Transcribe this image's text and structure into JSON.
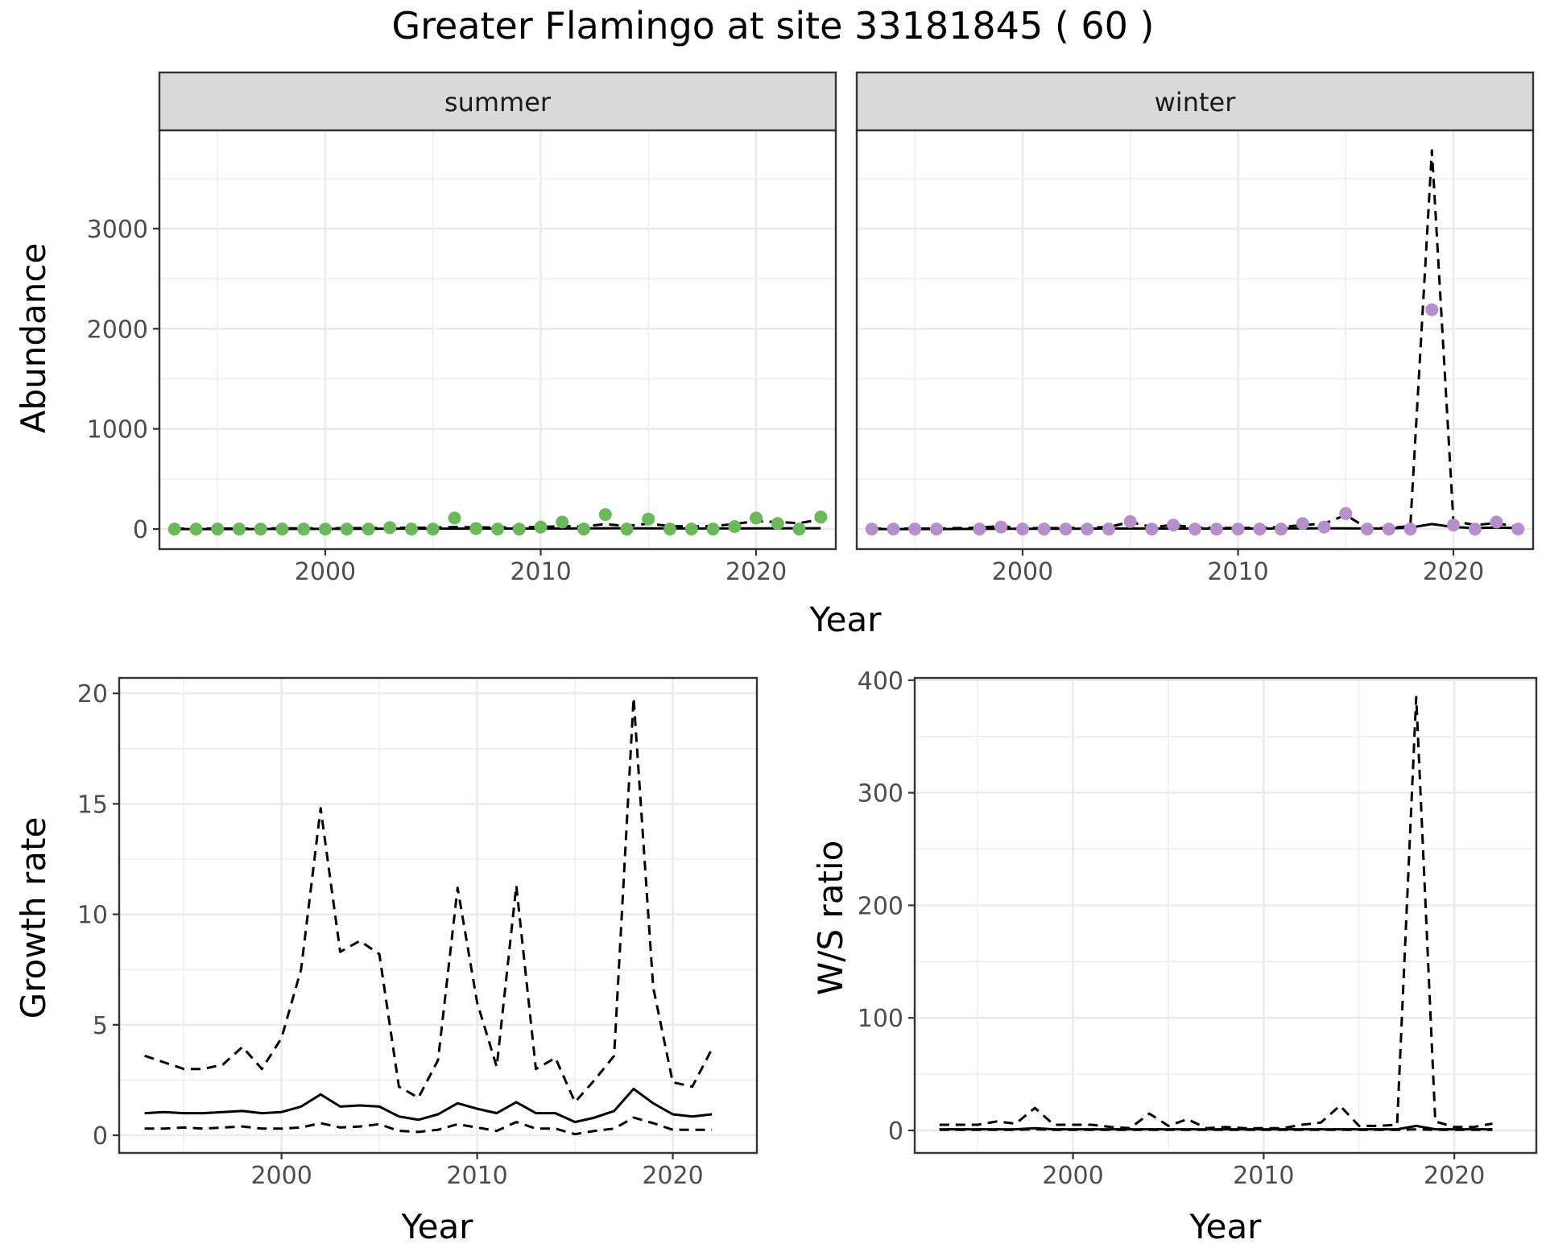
{
  "title": "Greater Flamingo at site 33181845 ( 60 )",
  "colors": {
    "summer": "#6ab85a",
    "winter": "#b48fc9"
  },
  "chart_data": [
    {
      "id": "abundance",
      "type": "scatter",
      "facets": [
        "summer",
        "winter"
      ],
      "xlabel": "Year",
      "ylabel": "Abundance",
      "xlim": [
        1992.3,
        2023.7
      ],
      "ylim": [
        -200,
        3980
      ],
      "x_ticks": [
        2000,
        2010,
        2020
      ],
      "y_ticks": [
        0,
        1000,
        2000,
        3000
      ],
      "panels": [
        {
          "facet": "summer",
          "points": {
            "x": [
              1993,
              1994,
              1995,
              1996,
              1997,
              1998,
              1999,
              2000,
              2001,
              2002,
              2003,
              2004,
              2005,
              2006,
              2007,
              2008,
              2009,
              2010,
              2011,
              2012,
              2013,
              2014,
              2015,
              2016,
              2017,
              2018,
              2019,
              2020,
              2021,
              2022,
              2023
            ],
            "y": [
              0,
              0,
              0,
              0,
              0,
              0,
              0,
              0,
              0,
              0,
              15,
              0,
              0,
              110,
              5,
              0,
              0,
              20,
              70,
              0,
              145,
              0,
              100,
              0,
              0,
              0,
              25,
              110,
              55,
              0,
              120
            ]
          },
          "estimate": {
            "x": [
              1993,
              1996,
              1999,
              2002,
              2005,
              2008,
              2011,
              2014,
              2017,
              2020,
              2023
            ],
            "y": [
              0,
              0,
              2,
              3,
              4,
              5,
              6,
              8,
              6,
              7,
              8
            ]
          },
          "upper": {
            "x": [
              1993,
              1996,
              1999,
              2002,
              2005,
              2006,
              2008,
              2010,
              2011,
              2012,
              2013,
              2014,
              2015,
              2016,
              2017,
              2018,
              2019,
              2020,
              2021,
              2022,
              2023
            ],
            "y": [
              5,
              5,
              8,
              10,
              15,
              20,
              15,
              20,
              30,
              25,
              50,
              30,
              55,
              30,
              25,
              30,
              50,
              80,
              70,
              60,
              95
            ]
          }
        },
        {
          "facet": "winter",
          "points": {
            "x": [
              1993,
              1994,
              1995,
              1996,
              1998,
              1999,
              2000,
              2001,
              2002,
              2003,
              2004,
              2005,
              2006,
              2007,
              2008,
              2009,
              2010,
              2011,
              2012,
              2013,
              2014,
              2015,
              2016,
              2017,
              2018,
              2019,
              2020,
              2021,
              2022,
              2023
            ],
            "y": [
              0,
              0,
              0,
              0,
              0,
              20,
              0,
              0,
              0,
              0,
              0,
              75,
              0,
              40,
              0,
              0,
              0,
              0,
              0,
              55,
              20,
              155,
              0,
              0,
              0,
              2190,
              40,
              0,
              70,
              0
            ]
          },
          "estimate": {
            "x": [
              1993,
              1996,
              1999,
              2002,
              2005,
              2008,
              2011,
              2014,
              2017,
              2018,
              2019,
              2020,
              2021,
              2022,
              2023
            ],
            "y": [
              0,
              0,
              3,
              3,
              6,
              5,
              5,
              8,
              5,
              15,
              50,
              20,
              10,
              15,
              10
            ]
          },
          "upper": {
            "x": [
              1993,
              1996,
              1998,
              1999,
              2000,
              2002,
              2004,
              2005,
              2006,
              2007,
              2008,
              2010,
              2012,
              2013,
              2014,
              2015,
              2016,
              2017,
              2018,
              2019,
              2020,
              2021,
              2022,
              2023
            ],
            "y": [
              5,
              5,
              15,
              30,
              10,
              10,
              20,
              70,
              20,
              40,
              15,
              10,
              20,
              40,
              55,
              140,
              10,
              10,
              30,
              3780,
              80,
              40,
              60,
              20
            ]
          }
        }
      ]
    },
    {
      "id": "growth",
      "type": "line",
      "xlabel": "Year",
      "ylabel": "Growth rate",
      "xlim": [
        1991.7,
        2024.3
      ],
      "ylim": [
        -0.8,
        20.7
      ],
      "x_ticks": [
        2000,
        2010,
        2020
      ],
      "y_ticks": [
        0,
        5,
        10,
        15,
        20
      ],
      "series": [
        {
          "style": "solid",
          "x": [
            1993,
            1994,
            1995,
            1996,
            1997,
            1998,
            1999,
            2000,
            2001,
            2002,
            2003,
            2004,
            2005,
            2006,
            2007,
            2008,
            2009,
            2010,
            2011,
            2012,
            2013,
            2014,
            2015,
            2016,
            2017,
            2018,
            2019,
            2020,
            2021,
            2022
          ],
          "y": [
            1.0,
            1.05,
            1.0,
            1.0,
            1.05,
            1.1,
            1.0,
            1.05,
            1.3,
            1.85,
            1.3,
            1.35,
            1.3,
            0.85,
            0.7,
            0.95,
            1.45,
            1.2,
            1.0,
            1.5,
            1.0,
            1.0,
            0.6,
            0.8,
            1.1,
            2.1,
            1.45,
            0.95,
            0.85,
            0.95
          ]
        },
        {
          "style": "dashed",
          "x": [
            1993,
            1994,
            1995,
            1996,
            1997,
            1998,
            1999,
            2000,
            2001,
            2002,
            2003,
            2004,
            2005,
            2006,
            2007,
            2008,
            2009,
            2010,
            2011,
            2012,
            2013,
            2014,
            2015,
            2016,
            2017,
            2018,
            2019,
            2020,
            2021,
            2022
          ],
          "y": [
            3.6,
            3.3,
            3.0,
            3.0,
            3.2,
            4.0,
            3.0,
            4.4,
            7.5,
            14.8,
            8.3,
            8.8,
            8.2,
            2.2,
            1.7,
            3.4,
            11.2,
            6.0,
            3.1,
            11.3,
            3.0,
            3.5,
            1.5,
            2.5,
            3.6,
            19.8,
            6.7,
            2.4,
            2.2,
            3.9
          ]
        },
        {
          "style": "dashed",
          "x": [
            1993,
            1994,
            1995,
            1996,
            1997,
            1998,
            1999,
            2000,
            2001,
            2002,
            2003,
            2004,
            2005,
            2006,
            2007,
            2008,
            2009,
            2010,
            2011,
            2012,
            2013,
            2014,
            2015,
            2016,
            2017,
            2018,
            2019,
            2020,
            2021,
            2022
          ],
          "y": [
            0.3,
            0.3,
            0.35,
            0.3,
            0.35,
            0.4,
            0.3,
            0.3,
            0.35,
            0.55,
            0.35,
            0.4,
            0.5,
            0.2,
            0.15,
            0.25,
            0.5,
            0.35,
            0.2,
            0.6,
            0.3,
            0.3,
            0.05,
            0.2,
            0.3,
            0.8,
            0.55,
            0.25,
            0.25,
            0.25
          ]
        }
      ]
    },
    {
      "id": "ws_ratio",
      "type": "line",
      "xlabel": "Year",
      "ylabel": "W/S ratio",
      "xlim": [
        1991.7,
        2024.3
      ],
      "ylim": [
        -20,
        402
      ],
      "x_ticks": [
        2000,
        2010,
        2020
      ],
      "y_ticks": [
        0,
        100,
        200,
        300,
        400
      ],
      "series": [
        {
          "style": "solid",
          "x": [
            1993,
            1994,
            1995,
            1996,
            1997,
            1998,
            1999,
            2000,
            2001,
            2002,
            2003,
            2004,
            2005,
            2006,
            2007,
            2008,
            2009,
            2010,
            2011,
            2012,
            2013,
            2014,
            2015,
            2016,
            2017,
            2018,
            2019,
            2020,
            2021,
            2022
          ],
          "y": [
            1,
            1,
            1,
            1,
            1,
            2,
            1,
            1,
            1,
            1,
            1,
            1,
            1,
            1,
            1,
            1,
            1,
            1,
            1,
            1,
            1,
            1,
            1,
            1,
            1,
            4,
            1,
            1,
            1,
            1
          ]
        },
        {
          "style": "dashed",
          "x": [
            1993,
            1994,
            1995,
            1996,
            1997,
            1998,
            1999,
            2000,
            2001,
            2002,
            2003,
            2004,
            2005,
            2006,
            2007,
            2008,
            2009,
            2010,
            2011,
            2012,
            2013,
            2014,
            2015,
            2016,
            2017,
            2018,
            2019,
            2020,
            2021,
            2022
          ],
          "y": [
            5,
            5,
            5,
            8,
            6,
            20,
            5,
            5,
            5,
            3,
            2,
            15,
            4,
            10,
            2,
            3,
            2,
            2,
            2,
            5,
            7,
            22,
            4,
            4,
            5,
            385,
            8,
            3,
            3,
            6
          ]
        },
        {
          "style": "dashed",
          "x": [
            1993,
            1994,
            1995,
            1996,
            1997,
            1998,
            1999,
            2000,
            2001,
            2002,
            2003,
            2004,
            2005,
            2006,
            2007,
            2008,
            2009,
            2010,
            2011,
            2012,
            2013,
            2014,
            2015,
            2016,
            2017,
            2018,
            2019,
            2020,
            2021,
            2022
          ],
          "y": [
            0.5,
            0.5,
            0.5,
            0.5,
            0.5,
            1,
            0.5,
            0.5,
            0.5,
            0.5,
            0.5,
            0.5,
            0.5,
            0.5,
            0.5,
            0.5,
            0.5,
            0.5,
            0.5,
            0.5,
            0.5,
            0.5,
            0.5,
            0.5,
            0.5,
            1,
            0.5,
            0.5,
            0.5,
            0.5
          ]
        }
      ]
    }
  ]
}
